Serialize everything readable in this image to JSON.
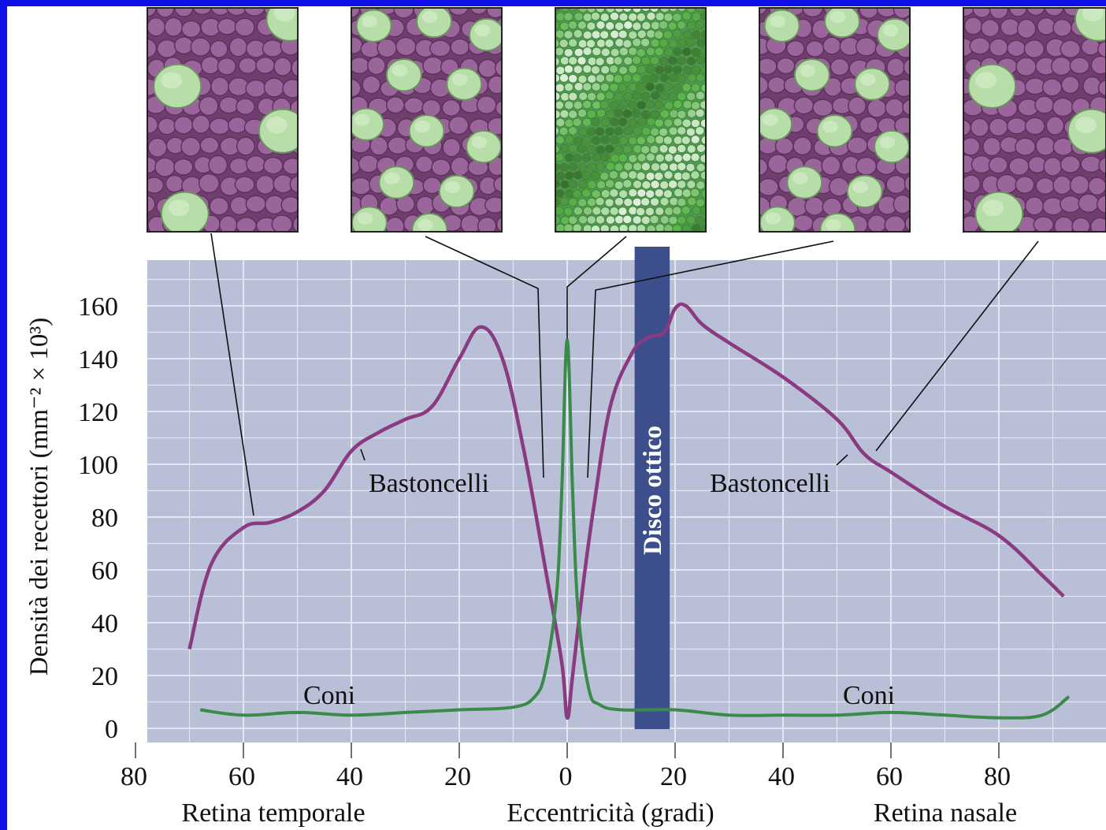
{
  "chart_data": {
    "type": "line",
    "xlabel": "Eccentricità (gradi)",
    "ylabel": "Densità dei recettori (mm⁻² × 10³)",
    "ylim": [
      0,
      170
    ],
    "x_tick_labels": [
      "80",
      "60",
      "40",
      "20",
      "0",
      "20",
      "40",
      "60",
      "80"
    ],
    "y_tick_labels": [
      "0",
      "20",
      "40",
      "60",
      "80",
      "100",
      "120",
      "140",
      "160"
    ],
    "region_labels": {
      "left": "Retina temporale",
      "right": "Retina nasale"
    },
    "optic_disc": {
      "label": "Disco ottico",
      "from_deg": 12.5,
      "to_deg": 19
    },
    "grid": true,
    "series": [
      {
        "name": "Bastoncelli",
        "color": "#8a3a80",
        "x": [
          -70,
          -66,
          -60,
          -55,
          -50,
          -45,
          -40,
          -35,
          -30,
          -25,
          -20,
          -16,
          -12,
          -8,
          -4,
          -1,
          0,
          1,
          3,
          5,
          8,
          12,
          15,
          18,
          20,
          22,
          25,
          30,
          40,
          50,
          55,
          60,
          70,
          80,
          88,
          92
        ],
        "y": [
          30,
          62,
          76,
          78,
          82,
          90,
          105,
          112,
          117,
          122,
          140,
          152,
          140,
          105,
          60,
          25,
          4,
          20,
          55,
          85,
          122,
          142,
          148,
          150,
          159,
          160,
          153,
          146,
          133,
          117,
          104,
          97,
          84,
          73,
          58,
          50
        ]
      },
      {
        "name": "Coni",
        "color": "#3a8a4a",
        "x": [
          -68,
          -60,
          -50,
          -40,
          -30,
          -20,
          -10,
          -6,
          -4,
          -2,
          -1,
          0,
          1,
          2,
          4,
          6,
          10,
          20,
          30,
          40,
          50,
          60,
          70,
          80,
          88,
          93
        ],
        "y": [
          7,
          5,
          6,
          5,
          6,
          7,
          8,
          12,
          22,
          50,
          90,
          147,
          90,
          45,
          15,
          9,
          7,
          7,
          5,
          5,
          5,
          6,
          5,
          4,
          5,
          12
        ]
      }
    ],
    "annotations": [
      {
        "text": "Bastoncelli",
        "side": "left"
      },
      {
        "text": "Bastoncelli",
        "side": "right"
      },
      {
        "text": "Coni",
        "side": "left"
      },
      {
        "text": "Coni",
        "side": "right"
      }
    ]
  },
  "panels": [
    {
      "name": "panel-temporal-far",
      "mosaic": "rods-dominant-few-cones",
      "linked_deg": -58
    },
    {
      "name": "panel-temporal-near",
      "mosaic": "rods-and-cones",
      "linked_deg": -4
    },
    {
      "name": "panel-fovea",
      "mosaic": "cones-only",
      "linked_deg": 0
    },
    {
      "name": "panel-nasal-near",
      "mosaic": "rods-and-cones",
      "linked_deg": 4
    },
    {
      "name": "panel-nasal-far",
      "mosaic": "rods-dominant-few-cones",
      "linked_deg": 57
    }
  ],
  "colors": {
    "plot_bg": "#b8bfd6",
    "grid": "#e4e7f2",
    "rods_line": "#8a3a80",
    "cones_line": "#3a8a4a",
    "optic_disc": "#3c4f8c",
    "border": "#1010e8",
    "rod_cell": "#8f5a8d",
    "cone_cell": "#b7dea8"
  }
}
